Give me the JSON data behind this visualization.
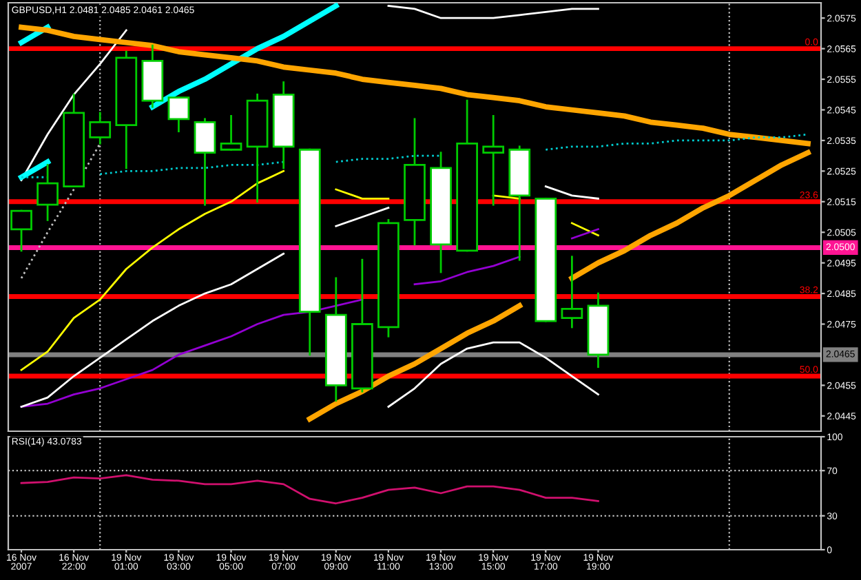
{
  "chart_data": [
    {
      "type": "candlestick",
      "title": "GBPUSD,H1 2.0481 2.0485 2.0461 2.0465",
      "categories": [
        null,
        null,
        null,
        null,
        null,
        null,
        null,
        null,
        null,
        null,
        null,
        null,
        null,
        null,
        null,
        null,
        null,
        null,
        null,
        null,
        null,
        null,
        null,
        null,
        null,
        null,
        null,
        null,
        null,
        null,
        null
      ],
      "ohlc": [
        [
          2.0506,
          2.0512,
          2.0499,
          2.0512
        ],
        [
          2.0514,
          2.0527,
          2.0509,
          2.0521
        ],
        [
          2.052,
          2.055,
          2.052,
          2.0544
        ],
        [
          2.0536,
          2.0544,
          2.0534,
          2.0541
        ],
        [
          2.054,
          2.0564,
          2.0526,
          2.0562
        ],
        [
          2.0561,
          2.0566,
          2.0546,
          2.0548
        ],
        [
          2.0549,
          2.0549,
          2.0538,
          2.0542
        ],
        [
          2.0541,
          2.0542,
          2.0514,
          2.0531
        ],
        [
          2.0532,
          2.0543,
          2.0532,
          2.0534
        ],
        [
          2.0533,
          2.055,
          2.0515,
          2.0548
        ],
        [
          2.055,
          2.0554,
          2.0526,
          2.0533
        ],
        [
          2.0532,
          2.0532,
          2.0465,
          2.0479
        ],
        [
          2.0478,
          2.049,
          2.045,
          2.0455
        ],
        [
          2.0454,
          2.0496,
          2.0453,
          2.0475
        ],
        [
          2.0474,
          2.0509,
          2.0471,
          2.0508
        ],
        [
          2.0509,
          2.0542,
          2.0501,
          2.0527
        ],
        [
          2.0526,
          2.0531,
          2.0492,
          2.0501
        ],
        [
          2.0499,
          2.0548,
          2.0499,
          2.0534
        ],
        [
          2.0531,
          2.0543,
          2.0514,
          2.0533
        ],
        [
          2.0532,
          2.0533,
          2.0496,
          2.0517
        ],
        [
          2.0516,
          2.0516,
          2.0476,
          2.0476
        ],
        [
          2.0477,
          2.0497,
          2.0474,
          2.048
        ],
        [
          2.0481,
          2.0485,
          2.0461,
          2.0465
        ],
        null,
        null,
        null,
        null,
        null,
        null,
        null,
        null
      ],
      "color": "#00cc00",
      "colors": [
        "#000000",
        "#000000",
        "#000000",
        "#000000",
        "#000000",
        "#ffffff",
        "#ffffff",
        "#ffffff",
        "#000000",
        "#000000",
        "#ffffff",
        "#ffffff",
        "#ffffff",
        "#000000",
        "#000000",
        "#000000",
        "#ffffff",
        "#000000",
        "#000000",
        "#ffffff",
        "#ffffff",
        "#000000",
        "#ffffff",
        null,
        null,
        null,
        null,
        null,
        null,
        null,
        null
      ],
      "series": [
        {
          "type": "line",
          "color": "#ffff00",
          "values": [
            2.046,
            2.0466,
            2.0477,
            2.0483,
            2.0493,
            2.05,
            2.0506,
            2.0511,
            2.0515,
            2.0521,
            2.0525,
            null,
            2.0519,
            2.0516,
            2.0516,
            null,
            null,
            null,
            2.0517,
            2.0516,
            null,
            2.0508,
            2.0504,
            null,
            null,
            null,
            null,
            null,
            null,
            null,
            null
          ]
        },
        {
          "type": "line",
          "color": "#9400d3",
          "values": [
            2.0448,
            2.0449,
            2.0452,
            2.0454,
            2.0457,
            2.046,
            2.0465,
            2.0468,
            2.0471,
            2.0475,
            2.0478,
            2.0479,
            2.0481,
            2.0483,
            null,
            2.0488,
            2.0489,
            2.0492,
            2.0494,
            2.0497,
            null,
            2.0503,
            2.0506,
            null,
            null,
            null,
            null,
            null,
            null,
            null,
            null
          ]
        },
        {
          "type": "line",
          "color": "#ffffff",
          "values": [
            2.0448,
            2.0451,
            2.0458,
            2.0464,
            2.047,
            2.0476,
            2.0481,
            2.0485,
            2.0488,
            2.0493,
            2.0498,
            null,
            2.0507,
            2.051,
            2.0513,
            null,
            null,
            null,
            null,
            null,
            2.052,
            2.0517,
            2.0516,
            null,
            null,
            null,
            null,
            null,
            null,
            null,
            null
          ]
        },
        {
          "type": "line",
          "color": "#ffffff",
          "values": [
            2.0522,
            2.0537,
            2.055,
            2.056,
            2.0571,
            null,
            null,
            null,
            null,
            null,
            null,
            null,
            null,
            null,
            2.0579,
            2.0578,
            2.0575,
            2.0575,
            2.0575,
            2.0576,
            2.0577,
            2.0578,
            2.0578,
            null,
            null,
            null,
            null,
            null,
            null,
            null,
            null
          ]
        },
        {
          "type": "line",
          "color": "#ffffff",
          "values": [
            null,
            null,
            null,
            null,
            null,
            null,
            null,
            null,
            null,
            null,
            null,
            null,
            null,
            null,
            2.0448,
            2.0454,
            2.0462,
            2.0467,
            2.0469,
            2.0469,
            2.0464,
            2.0458,
            2.0452,
            null,
            null,
            null,
            null,
            null,
            null,
            null,
            null
          ]
        },
        {
          "type": "line",
          "color": "#c0c0c0",
          "line_style": "dotted",
          "values": [
            2.049,
            2.0505,
            2.0519,
            2.0534,
            null,
            null,
            null,
            null,
            null,
            null,
            null,
            null,
            null,
            null,
            null,
            null,
            null,
            null,
            null,
            null,
            null,
            null,
            null,
            null,
            null,
            null,
            null,
            null,
            null,
            null,
            null
          ]
        },
        {
          "type": "line",
          "color": "#00ffff",
          "values": [
            2.0523,
            2.0528,
            null,
            null,
            null,
            2.0546,
            2.0551,
            2.0555,
            2.056,
            2.0565,
            2.0569,
            2.0574,
            2.0579,
            null,
            null,
            null,
            null,
            null,
            null,
            null,
            null,
            null,
            null,
            null,
            null,
            null,
            null,
            null,
            null,
            null,
            null
          ]
        },
        {
          "type": "line",
          "color": "#00ffff",
          "values": [
            2.0567,
            2.0572,
            null,
            null,
            null,
            null,
            null,
            null,
            null,
            null,
            null,
            null,
            null,
            null,
            null,
            null,
            null,
            null,
            null,
            null,
            null,
            null,
            null,
            null,
            null,
            null,
            null,
            null,
            null,
            null,
            null
          ]
        },
        {
          "type": "line",
          "color": "#ffa500",
          "values": [
            2.0572,
            2.0571,
            2.0569,
            2.0568,
            2.0567,
            2.0566,
            2.0564,
            2.0563,
            2.0562,
            2.0561,
            2.0559,
            2.0558,
            2.0557,
            2.0555,
            2.0554,
            2.0553,
            2.0552,
            2.055,
            2.0549,
            2.0548,
            2.0546,
            2.0545,
            2.0544,
            2.0543,
            2.0541,
            2.054,
            2.0539,
            2.0537,
            2.0536,
            2.0535,
            2.0534
          ]
        },
        {
          "type": "line",
          "color": "#ffa500",
          "values": [
            null,
            null,
            null,
            null,
            null,
            null,
            null,
            null,
            null,
            null,
            null,
            2.0444,
            2.0449,
            2.0453,
            2.0458,
            2.0462,
            2.0467,
            2.0472,
            2.0476,
            2.0481,
            null,
            2.049,
            2.0495,
            2.0499,
            2.0504,
            2.0508,
            2.0513,
            2.0517,
            2.0522,
            2.0527,
            2.0531
          ]
        },
        {
          "type": "line",
          "color": "#00ced1",
          "line_style": "dotted",
          "values": [
            2.0523,
            2.0523,
            null,
            2.0524,
            2.0525,
            2.0525,
            2.0526,
            2.0526,
            2.0527,
            2.0527,
            2.0528,
            null,
            2.0528,
            2.0529,
            2.0529,
            2.053,
            2.053,
            null,
            null,
            null,
            2.0532,
            2.0533,
            2.0533,
            2.0534,
            2.0534,
            2.0535,
            2.0535,
            2.0535,
            2.0536,
            2.0536,
            2.0537
          ]
        }
      ],
      "ylim": [
        2.044,
        2.058
      ],
      "yticks": [
        2.0445,
        2.0455,
        2.0475,
        2.0485,
        2.0495,
        2.0505,
        2.0515,
        2.0525,
        2.0535,
        2.0545,
        2.0555,
        2.0565,
        2.0575
      ],
      "ref_lines": [
        {
          "axis": "y",
          "value": 2.0565,
          "color": "#ff0000"
        },
        {
          "axis": "y",
          "value": 2.0515,
          "color": "#ff0000"
        },
        {
          "axis": "y",
          "value": 2.0484,
          "color": "#ff0000"
        },
        {
          "axis": "y",
          "value": 2.0458,
          "color": "#ff0000"
        },
        {
          "axis": "y",
          "value": 2.05,
          "label": "2.0500",
          "color": "#ff1493"
        },
        {
          "axis": "y",
          "value": 2.0465,
          "label": "2.0465",
          "color": "#808080"
        }
      ],
      "annotations": [
        {
          "text": "0.0",
          "y": 2.0565
        },
        {
          "text": "23.6",
          "y": 2.0515
        },
        {
          "text": "38.2",
          "y": 2.0484
        },
        {
          "text": "50.0",
          "y": 2.0458
        }
      ]
    },
    {
      "type": "line",
      "title": "RSI(14) 43.0783",
      "color": "#d0106e",
      "categories": [
        "16 Nov 2007",
        null,
        "16 Nov 22:00",
        null,
        "19 Nov 01:00",
        null,
        "19 Nov 03:00",
        null,
        "19 Nov 05:00",
        null,
        "19 Nov 07:00",
        null,
        "19 Nov 09:00",
        null,
        "19 Nov 11:00",
        null,
        "19 Nov 13:00",
        null,
        "19 Nov 15:00",
        null,
        "19 Nov 17:00",
        null,
        "19 Nov 19:00",
        null,
        null,
        null,
        null,
        null,
        null,
        null,
        null
      ],
      "values": [
        59,
        60,
        64,
        63,
        66,
        62,
        61,
        58,
        58,
        61,
        58,
        45,
        41,
        46,
        53,
        55,
        50,
        56,
        56,
        53,
        46,
        46,
        43,
        null,
        null,
        null,
        null,
        null,
        null,
        null,
        null
      ],
      "ylim": [
        0,
        100
      ],
      "yticks": [
        0,
        30,
        70,
        100
      ],
      "ref_lines": [
        {
          "axis": "y",
          "value": 70,
          "line_style": "dotted",
          "color": "#c0c0c0"
        },
        {
          "axis": "y",
          "value": 30,
          "line_style": "dotted",
          "color": "#c0c0c0"
        }
      ]
    }
  ]
}
